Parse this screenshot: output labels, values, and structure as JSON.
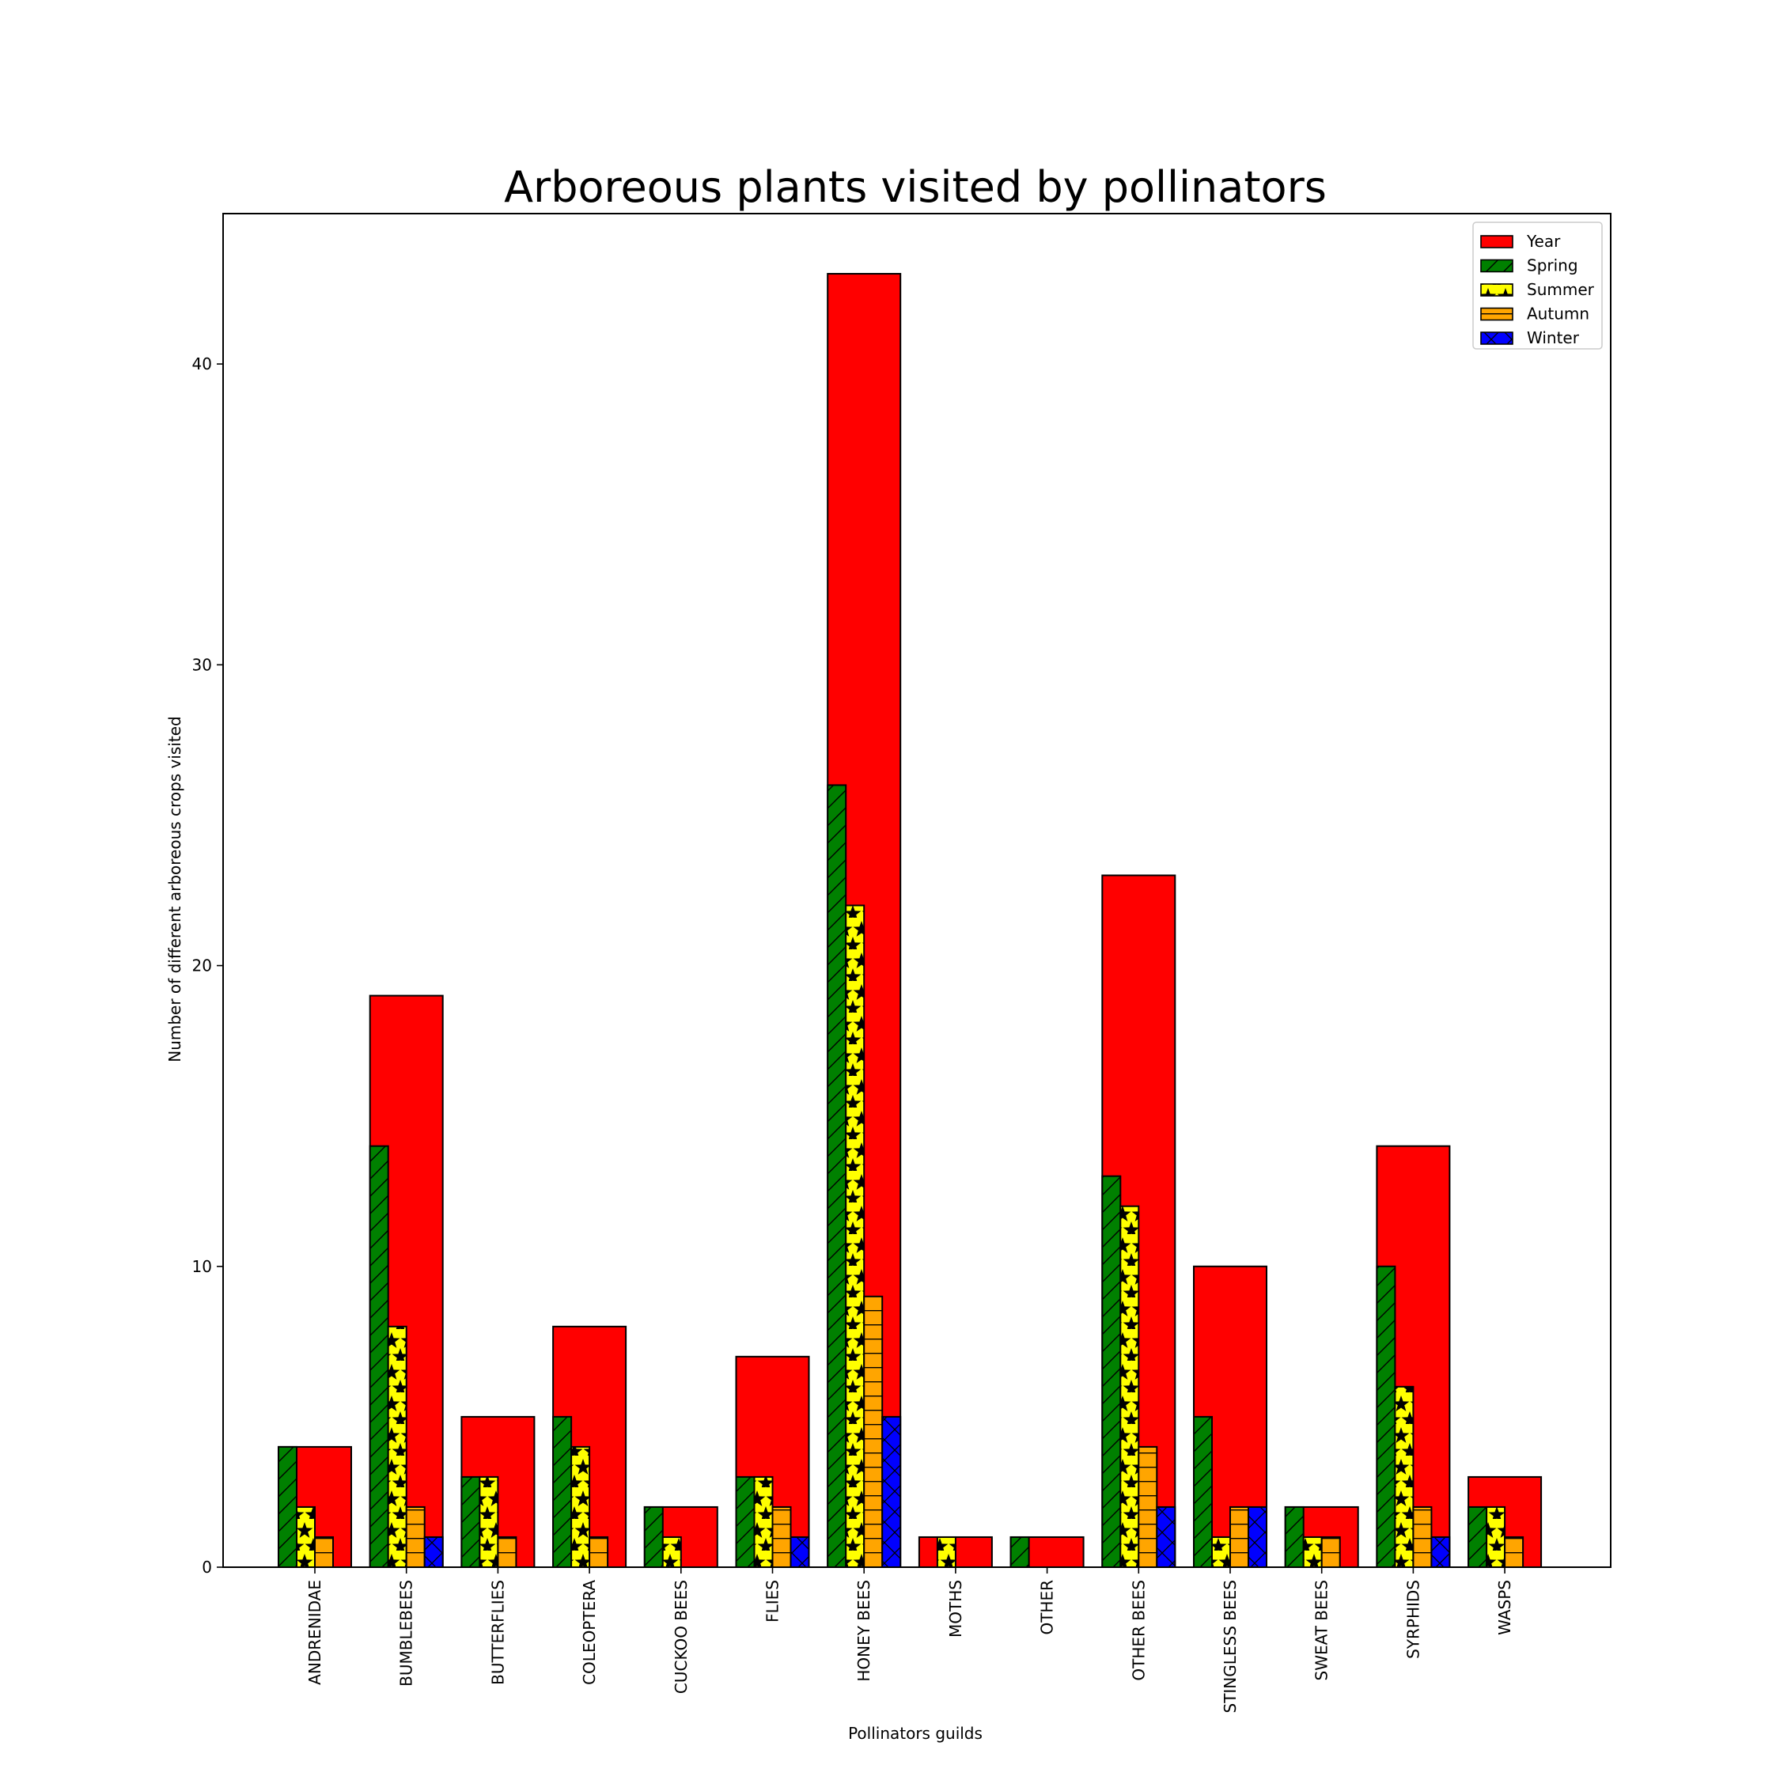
{
  "chart_data": {
    "type": "bar",
    "title": "Arboreous plants visited by pollinators",
    "xlabel": "Pollinators guilds",
    "ylabel": "Number of different arboreous crops visited",
    "ylim": [
      0,
      45
    ],
    "yticks": [
      0,
      10,
      20,
      30,
      40
    ],
    "grid": false,
    "legend_position": "top-right",
    "categories": [
      "ANDRENIDAE",
      "BUMBLEBEES",
      "BUTTERFLIES",
      "COLEOPTERA",
      "CUCKOO BEES",
      "FLIES",
      "HONEY BEES",
      "MOTHS",
      "OTHER",
      "OTHER BEES",
      "STINGLESS BEES",
      "SWEAT BEES",
      "SYRPHIDS",
      "WASPS"
    ],
    "series": [
      {
        "name": "Year",
        "color": "#ff0000",
        "pattern": "none",
        "values": [
          4,
          19,
          5,
          8,
          2,
          7,
          43,
          1,
          1,
          23,
          10,
          2,
          14,
          3
        ]
      },
      {
        "name": "Spring",
        "color": "#008000",
        "pattern": "diagonal-lines",
        "values": [
          4,
          14,
          3,
          5,
          2,
          3,
          26,
          0,
          1,
          13,
          5,
          2,
          10,
          2
        ]
      },
      {
        "name": "Summer",
        "color": "#ffff00",
        "pattern": "stars",
        "values": [
          2,
          8,
          3,
          4,
          1,
          3,
          22,
          1,
          0,
          12,
          1,
          1,
          6,
          2
        ]
      },
      {
        "name": "Autumn",
        "color": "#ffa500",
        "pattern": "horizontal-lines",
        "values": [
          1,
          2,
          1,
          1,
          0,
          2,
          9,
          0,
          0,
          4,
          2,
          1,
          2,
          1
        ]
      },
      {
        "name": "Winter",
        "color": "#0000ff",
        "pattern": "crosshatch",
        "values": [
          0,
          1,
          0,
          0,
          0,
          1,
          5,
          0,
          0,
          2,
          2,
          0,
          1,
          0
        ]
      }
    ]
  }
}
